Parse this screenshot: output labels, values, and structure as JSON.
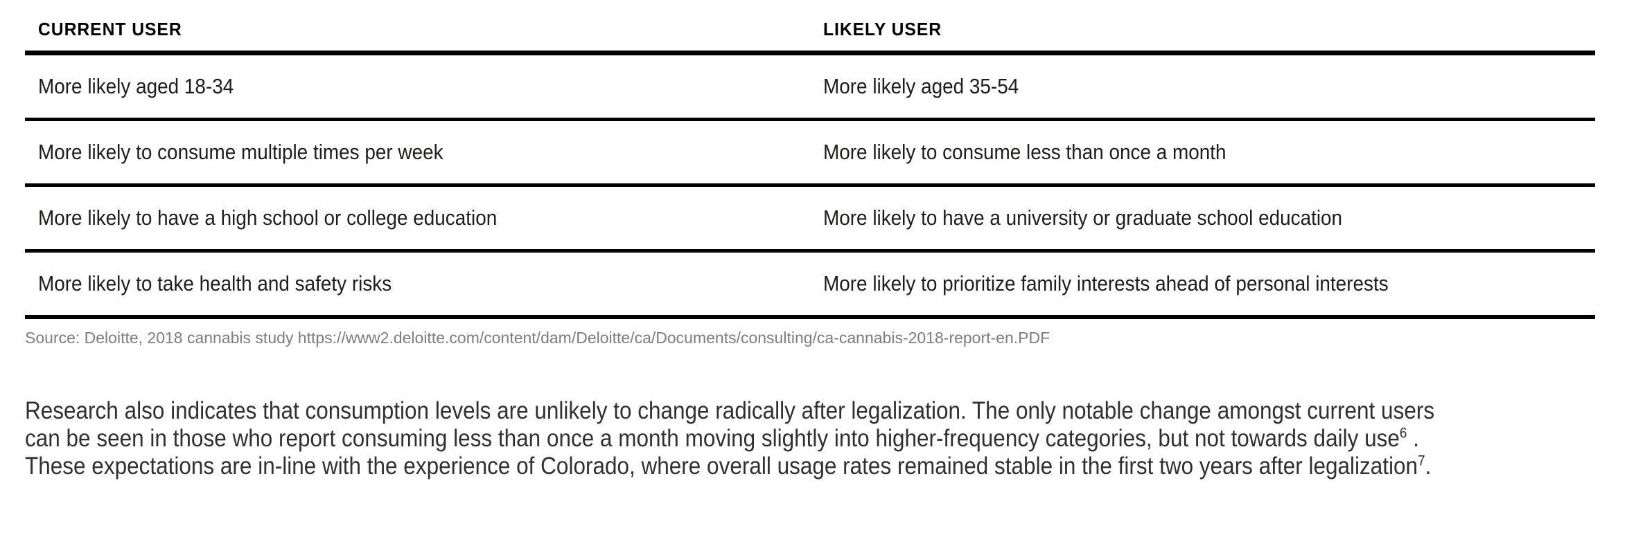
{
  "table": {
    "headers": [
      "CURRENT USER",
      "LIKELY USER"
    ],
    "rows": [
      [
        "More likely aged 18-34",
        "More likely aged 35-54"
      ],
      [
        "More likely to consume multiple times per week",
        "More likely to consume less than once a month"
      ],
      [
        "More likely to have a high school or college education",
        "More likely to have a university or graduate school education"
      ],
      [
        "More likely to take health and safety risks",
        "More likely to prioritize family interests ahead of personal interests"
      ]
    ]
  },
  "source": {
    "text": "Source: Deloitte, 2018 cannabis study https://www2.deloitte.com/content/dam/Deloitte/ca/Documents/consulting/ca-cannabis-2018-report-en.PDF"
  },
  "paragraph": {
    "line1": "Research also indicates that consumption levels are unlikely to change radically after legalization. The only notable change amongst current users",
    "line2": "can be seen in those who report consuming less than once a month moving slightly into higher-frequency categories, but not towards daily use",
    "footnote6": "6",
    "line2_tail": " .",
    "line3": "These expectations are in-line with the experience of Colorado, where overall usage rates remained stable in the first two years after legalization",
    "footnote7": "7",
    "line3_tail": "."
  },
  "colors": {
    "table_text": "#1d1d1b",
    "rule_line": "#000000",
    "source_text": "#7d7d7d",
    "paragraph_text": "#303030",
    "background": "#ffffff"
  }
}
